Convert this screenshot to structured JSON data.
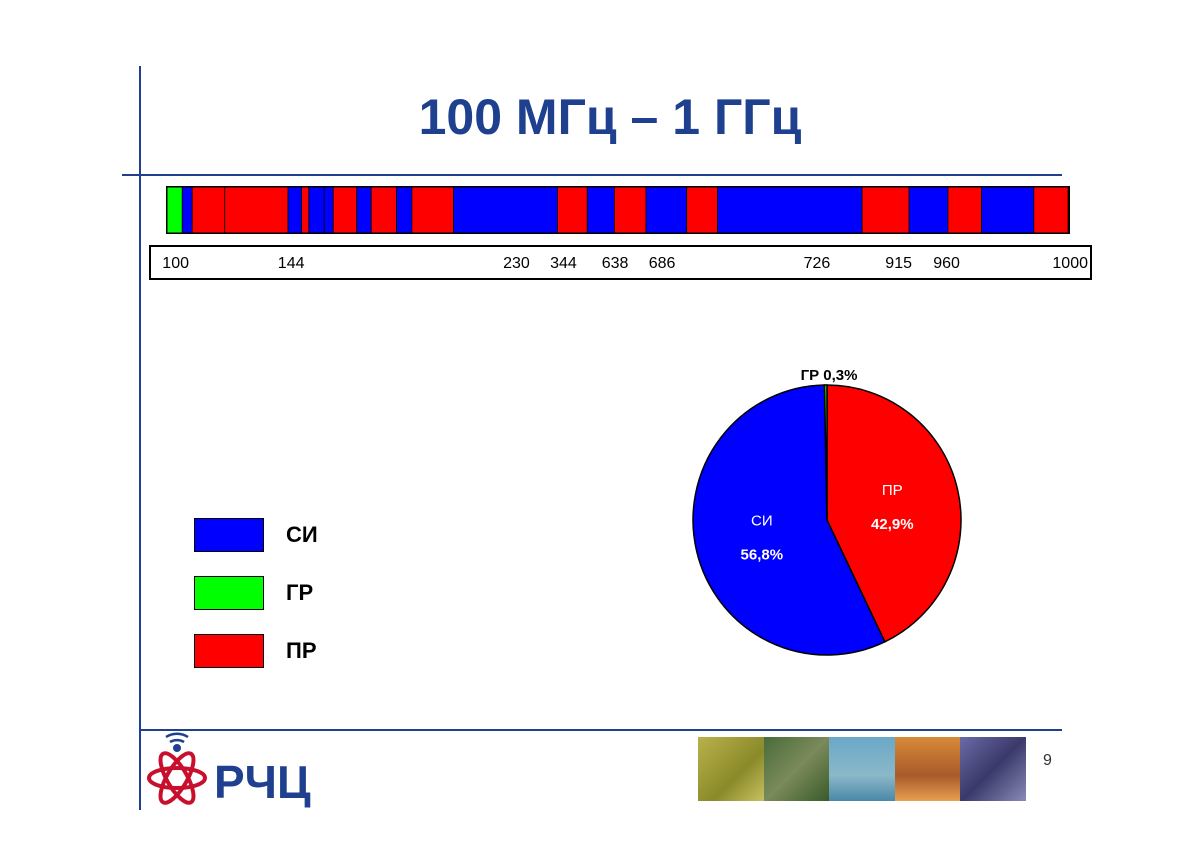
{
  "title": "100 МГц – 1 ГГц",
  "colors": {
    "si": "#0000ff",
    "gr": "#00ff00",
    "pr": "#ff0000",
    "accent": "#1f3f8f"
  },
  "band_segments": [
    {
      "service": "gr",
      "from": 0.0,
      "to": 1.8
    },
    {
      "service": "si",
      "from": 1.8,
      "to": 2.9
    },
    {
      "service": "pr",
      "from": 2.9,
      "to": 6.5
    },
    {
      "service": "pr",
      "from": 6.5,
      "to": 13.5
    },
    {
      "service": "si",
      "from": 13.5,
      "to": 15.0
    },
    {
      "service": "pr",
      "from": 15.0,
      "to": 15.8
    },
    {
      "service": "si",
      "from": 15.8,
      "to": 17.5
    },
    {
      "service": "si",
      "from": 17.5,
      "to": 18.5
    },
    {
      "service": "pr",
      "from": 18.5,
      "to": 21.1
    },
    {
      "service": "si",
      "from": 21.1,
      "to": 22.7
    },
    {
      "service": "pr",
      "from": 22.7,
      "to": 25.5
    },
    {
      "service": "si",
      "from": 25.5,
      "to": 27.2
    },
    {
      "service": "pr",
      "from": 27.2,
      "to": 31.8
    },
    {
      "service": "si",
      "from": 31.8,
      "to": 43.3
    },
    {
      "service": "pr",
      "from": 43.3,
      "to": 46.6
    },
    {
      "service": "si",
      "from": 46.6,
      "to": 49.6
    },
    {
      "service": "pr",
      "from": 49.6,
      "to": 53.1
    },
    {
      "service": "si",
      "from": 53.1,
      "to": 57.6
    },
    {
      "service": "pr",
      "from": 57.6,
      "to": 61.0
    },
    {
      "service": "si",
      "from": 61.0,
      "to": 77.0
    },
    {
      "service": "pr",
      "from": 77.0,
      "to": 82.2
    },
    {
      "service": "si",
      "from": 82.2,
      "to": 86.5
    },
    {
      "service": "pr",
      "from": 86.5,
      "to": 90.2
    },
    {
      "service": "si",
      "from": 90.2,
      "to": 96.0
    },
    {
      "service": "pr",
      "from": 96.0,
      "to": 99.8
    },
    {
      "service": "si",
      "from": 99.8,
      "to": 100.0
    }
  ],
  "freq_labels": [
    {
      "text": "100",
      "pos": 1.2
    },
    {
      "text": "144",
      "pos": 13.5
    },
    {
      "text": "230",
      "pos": 37.5
    },
    {
      "text": "344",
      "pos": 42.5
    },
    {
      "text": "638",
      "pos": 48.0
    },
    {
      "text": "686",
      "pos": 53.0
    },
    {
      "text": "726",
      "pos": 69.5
    },
    {
      "text": "915",
      "pos": 78.2
    },
    {
      "text": "960",
      "pos": 83.3
    },
    {
      "text": "1000",
      "pos": 96.0
    }
  ],
  "legend": [
    {
      "label": "СИ",
      "service": "si"
    },
    {
      "label": "ГР",
      "service": "gr"
    },
    {
      "label": "ПР",
      "service": "pr"
    }
  ],
  "chart_data": {
    "type": "pie",
    "title": "",
    "slices": [
      {
        "name": "ПР",
        "value": 42.9,
        "label": "42,9%",
        "color": "#ff0000"
      },
      {
        "name": "СИ",
        "value": 56.8,
        "label": "56,8%",
        "color": "#0000ff"
      },
      {
        "name": "ГР",
        "value": 0.3,
        "label": "ГР 0,3%",
        "color": "#00ff00"
      }
    ]
  },
  "footer": {
    "logo_text": "РЧЦ",
    "page_number": "9"
  }
}
